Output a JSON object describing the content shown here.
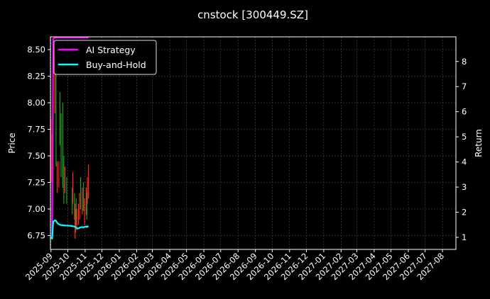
{
  "chart_data": {
    "type": "line",
    "title": "cnstock [300449.SZ]",
    "ylabel_left": "Price",
    "ylabel_right": "Return",
    "xlim": [
      "2025-08-31",
      "2027-08-25"
    ],
    "ylim_left": [
      6.62,
      8.62
    ],
    "ylim_right": [
      0.52,
      8.98
    ],
    "grid": true,
    "legend_placement": "top-left",
    "x_ticks": [
      "2025-09",
      "2025-10",
      "2025-11",
      "2025-12",
      "2026-01",
      "2026-02",
      "2026-03",
      "2026-04",
      "2026-05",
      "2026-06",
      "2026-07",
      "2026-08",
      "2026-09",
      "2026-10",
      "2026-11",
      "2026-12",
      "2027-01",
      "2027-02",
      "2027-03",
      "2027-04",
      "2027-05",
      "2027-06",
      "2027-07",
      "2027-08"
    ],
    "y_ticks_left": [
      "6.75",
      "7.00",
      "7.25",
      "7.50",
      "7.75",
      "8.00",
      "8.25",
      "8.50"
    ],
    "y_ticks_right": [
      "1",
      "2",
      "3",
      "4",
      "5",
      "6",
      "7",
      "8"
    ],
    "dates": [
      "2025-09-01",
      "2025-09-03",
      "2025-09-05",
      "2025-09-08",
      "2025-09-10",
      "2025-09-12",
      "2025-09-15",
      "2025-09-17",
      "2025-09-19",
      "2025-09-22",
      "2025-09-24",
      "2025-09-26",
      "2025-09-29",
      "2025-10-09",
      "2025-10-10",
      "2025-10-13",
      "2025-10-14",
      "2025-10-15",
      "2025-10-16",
      "2025-10-17",
      "2025-10-20",
      "2025-10-22",
      "2025-10-24",
      "2025-10-27",
      "2025-10-29",
      "2025-10-31",
      "2025-11-03",
      "2025-11-04",
      "2025-11-05",
      "2025-11-07"
    ],
    "price_high": [
      7.85,
      7.7,
      8.6,
      8.5,
      8.3,
      7.45,
      7.45,
      8.1,
      7.9,
      8.0,
      7.5,
      7.4,
      7.3,
      7.2,
      7.35,
      7.15,
      7.05,
      7.0,
      7.1,
      7.0,
      7.05,
      7.15,
      7.3,
      7.2,
      7.25,
      7.1,
      7.2,
      7.15,
      7.3,
      7.42
    ],
    "price_low": [
      7.25,
      7.3,
      7.8,
      7.9,
      7.4,
      7.15,
      7.2,
      7.6,
      7.3,
      7.2,
      7.05,
      7.15,
      7.05,
      6.95,
      7.05,
      6.9,
      6.72,
      6.78,
      6.85,
      6.8,
      6.85,
      6.9,
      7.0,
      6.95,
      6.98,
      6.85,
      6.95,
      6.9,
      7.05,
      7.1
    ],
    "price_direction": [
      "up",
      "up",
      "up",
      "up",
      "down",
      "up",
      "up",
      "down",
      "down",
      "down",
      "down",
      "up",
      "down",
      "down",
      "up",
      "down",
      "up",
      "up",
      "down",
      "up",
      "up",
      "up",
      "down",
      "up",
      "down",
      "up",
      "up",
      "down",
      "up",
      "up"
    ],
    "series": [
      {
        "name": "AI Strategy",
        "axis": "right",
        "color": "#ff00ff",
        "values": [
          1.0,
          0.97,
          8.9,
          8.95,
          8.95,
          8.95,
          8.95,
          8.95,
          8.95,
          8.95,
          8.95,
          8.95,
          8.95,
          8.95,
          8.95,
          8.95,
          8.95,
          8.95,
          8.95,
          8.95,
          8.95,
          8.95,
          8.95,
          8.95,
          8.95,
          8.95,
          8.95,
          8.95,
          8.95,
          8.95
        ]
      },
      {
        "name": "Buy-and-Hold",
        "axis": "right",
        "color": "#00ffff",
        "values": [
          1.0,
          0.95,
          1.62,
          1.68,
          1.66,
          1.58,
          1.52,
          1.5,
          1.49,
          1.48,
          1.48,
          1.47,
          1.47,
          1.45,
          1.44,
          1.43,
          1.42,
          1.4,
          1.38,
          1.36,
          1.35,
          1.38,
          1.4,
          1.41,
          1.39,
          1.42,
          1.43,
          1.41,
          1.44,
          1.42
        ]
      }
    ],
    "colors": {
      "up": "#ff2a1a",
      "down": "#1fa01f",
      "grid": "#555555"
    }
  }
}
